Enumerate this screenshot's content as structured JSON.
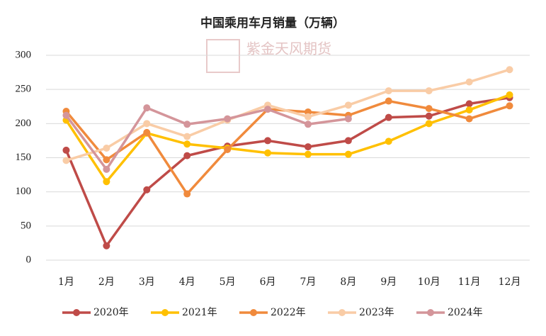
{
  "chart_data": {
    "type": "line",
    "title": "中国乘用车月销量（万辆）",
    "watermark": "紫金天风期货",
    "categories": [
      "1月",
      "2月",
      "3月",
      "4月",
      "5月",
      "6月",
      "7月",
      "8月",
      "9月",
      "10月",
      "11月",
      "12月"
    ],
    "series": [
      {
        "name": "2020年",
        "color": "#bf4b48",
        "values": [
          161,
          21,
          103,
          153,
          167,
          175,
          166,
          175,
          209,
          211,
          229,
          238
        ]
      },
      {
        "name": "2021年",
        "color": "#ffc000",
        "values": [
          205,
          115,
          186,
          170,
          164,
          157,
          155,
          155,
          174,
          200,
          220,
          242
        ]
      },
      {
        "name": "2022年",
        "color": "#f08a3c",
        "values": [
          218,
          147,
          187,
          97,
          162,
          221,
          217,
          212,
          233,
          222,
          207,
          226
        ]
      },
      {
        "name": "2023年",
        "color": "#f9cca6",
        "values": [
          146,
          164,
          200,
          181,
          205,
          227,
          210,
          227,
          248,
          248,
          261,
          279
        ]
      },
      {
        "name": "2024年",
        "color": "#d4959a",
        "values": [
          212,
          133,
          223,
          199,
          207,
          221,
          199,
          207,
          null,
          null,
          null,
          null
        ]
      }
    ],
    "ylim": [
      0,
      300
    ],
    "yticks": [
      0,
      50,
      100,
      150,
      200,
      250,
      300
    ],
    "grid": true
  }
}
